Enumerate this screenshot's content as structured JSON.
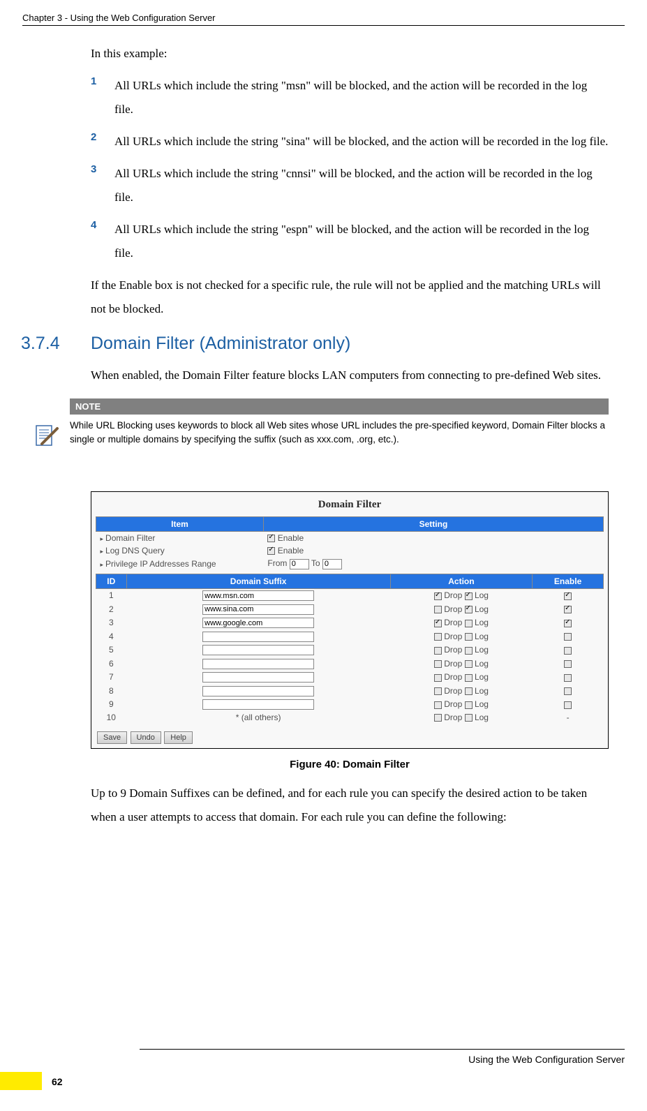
{
  "header": {
    "text": "Chapter 3 - Using the Web Configuration Server"
  },
  "intro": "In this example:",
  "items": [
    {
      "num": "1",
      "text": "All URLs which include the string \"msn\" will be blocked, and the action will be recorded in the log file."
    },
    {
      "num": "2",
      "text": "All URLs which include the string \"sina\" will be blocked, and the action will be recorded in the log file."
    },
    {
      "num": "3",
      "text": "All URLs which include the string \"cnnsi\" will be blocked, and the action will be recorded in the log file."
    },
    {
      "num": "4",
      "text": "All URLs which include the string \"espn\" will be blocked, and the action will be recorded in the log file."
    }
  ],
  "afterList": "If the Enable box is not checked for a specific rule, the rule will not be applied and the matching URLs will not be blocked.",
  "section": {
    "num": "3.7.4",
    "title": "Domain Filter (Administrator only)"
  },
  "sectionIntro": "When enabled, the Domain Filter feature blocks LAN computers from connecting to pre-defined Web sites.",
  "note": {
    "label": "NOTE",
    "text": "While URL Blocking uses keywords to block all Web sites whose URL includes the pre-specified keyword, Domain Filter blocks a single or multiple domains by specifying the suffix (such as xxx.com, .org, etc.)."
  },
  "figure": {
    "title": "Domain Filter",
    "headers1": {
      "item": "Item",
      "setting": "Setting"
    },
    "rows1": [
      {
        "label": "Domain Filter",
        "setting_type": "checkbox",
        "checked": true,
        "cbLabel": "Enable"
      },
      {
        "label": "Log DNS Query",
        "setting_type": "checkbox",
        "checked": true,
        "cbLabel": "Enable"
      },
      {
        "label": "Privilege IP Addresses Range",
        "setting_type": "range",
        "fromLabel": "From",
        "fromVal": "0",
        "toLabel": "To",
        "toVal": "0"
      }
    ],
    "headers2": {
      "id": "ID",
      "suffix": "Domain Suffix",
      "action": "Action",
      "enable": "Enable"
    },
    "actionLabels": {
      "drop": "Drop",
      "log": "Log"
    },
    "rows2": [
      {
        "id": "1",
        "suffix": "www.msn.com",
        "drop": true,
        "log": true,
        "enable": true
      },
      {
        "id": "2",
        "suffix": "www.sina.com",
        "drop": false,
        "log": true,
        "enable": true
      },
      {
        "id": "3",
        "suffix": "www.google.com",
        "drop": true,
        "log": false,
        "enable": true
      },
      {
        "id": "4",
        "suffix": "",
        "drop": false,
        "log": false,
        "enable": false
      },
      {
        "id": "5",
        "suffix": "",
        "drop": false,
        "log": false,
        "enable": false
      },
      {
        "id": "6",
        "suffix": "",
        "drop": false,
        "log": false,
        "enable": false
      },
      {
        "id": "7",
        "suffix": "",
        "drop": false,
        "log": false,
        "enable": false
      },
      {
        "id": "8",
        "suffix": "",
        "drop": false,
        "log": false,
        "enable": false
      },
      {
        "id": "9",
        "suffix": "",
        "drop": false,
        "log": false,
        "enable": false
      },
      {
        "id": "10",
        "suffix": "* (all others)",
        "drop": false,
        "log": false,
        "enable": null,
        "isText": true
      }
    ],
    "buttons": {
      "save": "Save",
      "undo": "Undo",
      "help": "Help"
    },
    "caption": "Figure 40: Domain Filter"
  },
  "afterFigure": "Up to 9 Domain Suffixes can be defined, and for each rule you can specify the desired action to be taken when a user attempts to access that domain. For each rule you can define the following:",
  "footer": {
    "text": "Using the Web Configuration Server",
    "pageNum": "62"
  }
}
